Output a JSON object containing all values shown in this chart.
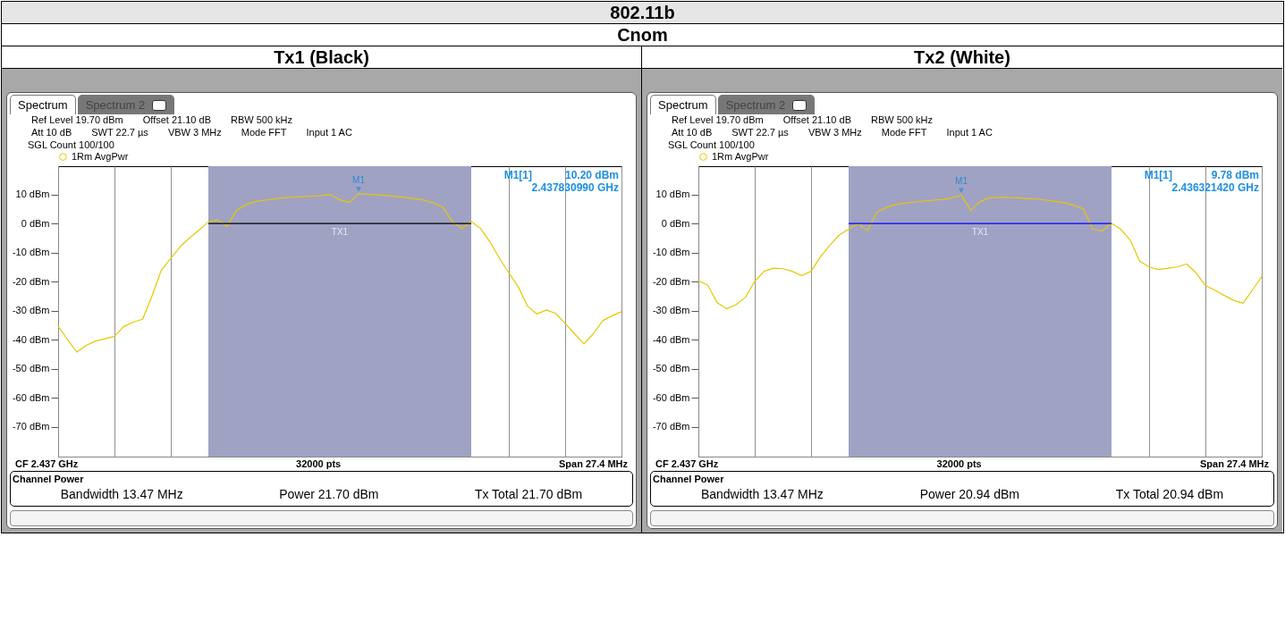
{
  "chart_data": [
    {
      "type": "line",
      "title": "Tx1 (Black)",
      "categories": [
        null,
        null,
        null,
        null,
        null,
        null,
        null,
        null,
        null,
        null,
        null,
        null,
        null,
        null,
        null,
        null,
        null,
        null,
        null,
        null,
        null,
        null,
        null,
        null,
        null,
        null,
        null,
        null,
        null,
        null,
        null,
        null,
        null,
        null,
        null,
        null,
        null,
        null,
        null,
        null,
        null,
        null,
        null,
        null,
        null,
        null,
        null,
        null,
        null,
        null,
        null,
        null,
        null,
        null,
        null,
        null,
        null,
        null,
        null,
        null,
        null
      ],
      "series": [
        {
          "name": "1Rm AvgPwr",
          "color": "#e6c800",
          "values": [
            -35.4,
            -40,
            -44.3,
            -42,
            -40.5,
            -39.7,
            -38.9,
            -35.5,
            -34,
            -33,
            -25,
            -16,
            -12,
            -8,
            -5,
            -2.3,
            0.5,
            1.2,
            -1,
            4.5,
            6.5,
            7.5,
            8,
            8.4,
            8.8,
            9,
            9.2,
            9.4,
            9.6,
            9.9,
            8.1,
            7.2,
            10.2,
            10,
            9.8,
            9.6,
            9.3,
            8.9,
            8.5,
            8,
            7,
            5.5,
            0.5,
            -1.7,
            0.6,
            -1.8,
            -6.4,
            -12,
            -17,
            -21.8,
            -28.5,
            -31.2,
            -29.8,
            -31,
            -34.5,
            -38,
            -41.5,
            -38,
            -33.5,
            -31.8,
            -30.4
          ]
        },
        {
          "type": "line",
          "color": "#000000",
          "values": [
            null,
            null,
            null,
            null,
            null,
            null,
            null,
            null,
            null,
            null,
            null,
            null,
            null,
            null,
            null,
            null,
            0,
            0,
            0,
            0,
            0,
            0,
            0,
            0,
            0,
            0,
            0,
            0,
            0,
            0,
            0,
            0,
            0,
            0,
            0,
            0,
            0,
            0,
            0,
            0,
            0,
            0,
            0,
            0,
            0,
            null,
            null,
            null,
            null,
            null,
            null,
            null,
            null,
            null,
            null,
            null,
            null,
            null,
            null,
            null,
            null
          ],
          "lower": [
            null,
            null,
            null,
            null,
            null,
            null,
            null,
            null,
            null,
            null,
            null,
            null,
            null,
            null,
            null,
            null,
            -80.3,
            -80.3,
            -80.3,
            -80.3,
            -80.3,
            -80.3,
            -80.3,
            -80.3,
            -80.3,
            -80.3,
            -80.3,
            -80.3,
            -80.3,
            -80.3,
            -80.3,
            -80.3,
            -80.3,
            -80.3,
            -80.3,
            -80.3,
            -80.3,
            -80.3,
            -80.3,
            -80.3,
            -80.3,
            -80.3,
            -80.3,
            -80.3,
            -80.3,
            null,
            null,
            null,
            null,
            null,
            null,
            null,
            null,
            null,
            null,
            null,
            null,
            null,
            null,
            null,
            null
          ],
          "upper": [
            null,
            null,
            null,
            null,
            null,
            null,
            null,
            null,
            null,
            null,
            null,
            null,
            null,
            null,
            null,
            null,
            19.7,
            19.7,
            19.7,
            19.7,
            19.7,
            19.7,
            19.7,
            19.7,
            19.7,
            19.7,
            19.7,
            19.7,
            19.7,
            19.7,
            19.7,
            19.7,
            19.7,
            19.7,
            19.7,
            19.7,
            19.7,
            19.7,
            19.7,
            19.7,
            19.7,
            19.7,
            19.7,
            19.7,
            19.7,
            null,
            null,
            null,
            null,
            null,
            null,
            null,
            null,
            null,
            null,
            null,
            null,
            null,
            null,
            null,
            null
          ]
        }
      ],
      "ylim": [
        -80.3,
        19.7
      ],
      "yticks": [
        {
          "value": 10,
          "label": "10 dBm"
        },
        {
          "value": 0,
          "label": "0 dBm"
        },
        {
          "value": -10,
          "label": "-10 dBm"
        },
        {
          "value": -20,
          "label": "-20 dBm"
        },
        {
          "value": -30,
          "label": "-30 dBm"
        },
        {
          "value": -40,
          "label": "-40 dBm"
        },
        {
          "value": -50,
          "label": "-50 dBm"
        },
        {
          "value": -60,
          "label": "-60 dBm"
        },
        {
          "value": -70,
          "label": "-70 dBm"
        }
      ],
      "grid": "x",
      "legend": "top left",
      "annotations": [
        "802.11b",
        "Cnom",
        "Spectrum",
        "Spectrum 2",
        "Ref Level 19.70 dBm",
        "Offset 21.10 dB",
        "RBW 500 kHz",
        "Att 10 dB",
        "SWT 22.7 µs",
        "VBW 3 MHz",
        "Mode FFT",
        "Input 1 AC",
        "SGL Count 100/100",
        "M1[1]",
        "10.20 dBm",
        "2.437830990 GHz",
        "TX1",
        "CF 2.437 GHz",
        "32000 pts",
        "Span 27.4 MHz",
        "Channel Power",
        "Bandwidth 13.47 MHz",
        "Power 21.70 dBm",
        "Tx Total 21.70 dBm",
        {
          "text": "M1",
          "y": 10.2
        }
      ]
    },
    {
      "type": "line",
      "title": "Tx2 (White)",
      "categories": [
        null,
        null,
        null,
        null,
        null,
        null,
        null,
        null,
        null,
        null,
        null,
        null,
        null,
        null,
        null,
        null,
        null,
        null,
        null,
        null,
        null,
        null,
        null,
        null,
        null,
        null,
        null,
        null,
        null,
        null,
        null,
        null,
        null,
        null,
        null,
        null,
        null,
        null,
        null,
        null,
        null,
        null,
        null,
        null,
        null,
        null,
        null,
        null,
        null,
        null,
        null,
        null,
        null,
        null,
        null,
        null,
        null,
        null,
        null,
        null,
        null
      ],
      "series": [
        {
          "name": "1Rm AvgPwr",
          "color": "#e6c800",
          "values": [
            -19.7,
            -21.3,
            -27.3,
            -29.4,
            -28,
            -25.5,
            -20,
            -16.5,
            -15.4,
            -15.6,
            -16.5,
            -18,
            -16.5,
            -11.5,
            -7.5,
            -4,
            -2,
            0,
            -2.5,
            3.8,
            5.5,
            6.5,
            7,
            7.4,
            7.7,
            8,
            8.2,
            8.8,
            9.78,
            4.5,
            7.5,
            8.8,
            9,
            9,
            8.8,
            8.6,
            8.4,
            8,
            7.6,
            7.1,
            6.2,
            5,
            -2,
            -2.6,
            0,
            -2,
            -5.8,
            -13,
            -15,
            -15.9,
            -15.4,
            -15,
            -14,
            -17,
            -21.4,
            -23,
            -24.8,
            -26.5,
            -27.5,
            -23,
            -18.3
          ]
        },
        {
          "type": "line",
          "color": "#0000ff",
          "values": [
            null,
            null,
            null,
            null,
            null,
            null,
            null,
            null,
            null,
            null,
            null,
            null,
            null,
            null,
            null,
            null,
            0,
            0,
            0,
            0,
            0,
            0,
            0,
            0,
            0,
            0,
            0,
            0,
            0,
            0,
            0,
            0,
            0,
            0,
            0,
            0,
            0,
            0,
            0,
            0,
            0,
            0,
            0,
            0,
            0,
            null,
            null,
            null,
            null,
            null,
            null,
            null,
            null,
            null,
            null,
            null,
            null,
            null,
            null,
            null,
            null
          ],
          "lower": [
            null,
            null,
            null,
            null,
            null,
            null,
            null,
            null,
            null,
            null,
            null,
            null,
            null,
            null,
            null,
            null,
            -80.3,
            -80.3,
            -80.3,
            -80.3,
            -80.3,
            -80.3,
            -80.3,
            -80.3,
            -80.3,
            -80.3,
            -80.3,
            -80.3,
            -80.3,
            -80.3,
            -80.3,
            -80.3,
            -80.3,
            -80.3,
            -80.3,
            -80.3,
            -80.3,
            -80.3,
            -80.3,
            -80.3,
            -80.3,
            -80.3,
            -80.3,
            -80.3,
            -80.3,
            null,
            null,
            null,
            null,
            null,
            null,
            null,
            null,
            null,
            null,
            null,
            null,
            null,
            null,
            null,
            null
          ],
          "upper": [
            null,
            null,
            null,
            null,
            null,
            null,
            null,
            null,
            null,
            null,
            null,
            null,
            null,
            null,
            null,
            null,
            19.7,
            19.7,
            19.7,
            19.7,
            19.7,
            19.7,
            19.7,
            19.7,
            19.7,
            19.7,
            19.7,
            19.7,
            19.7,
            19.7,
            19.7,
            19.7,
            19.7,
            19.7,
            19.7,
            19.7,
            19.7,
            19.7,
            19.7,
            19.7,
            19.7,
            19.7,
            19.7,
            19.7,
            19.7,
            null,
            null,
            null,
            null,
            null,
            null,
            null,
            null,
            null,
            null,
            null,
            null,
            null,
            null,
            null,
            null
          ]
        }
      ],
      "ylim": [
        -80.3,
        19.7
      ],
      "yticks": [
        {
          "value": 10,
          "label": "10 dBm"
        },
        {
          "value": 0,
          "label": "0 dBm"
        },
        {
          "value": -10,
          "label": "-10 dBm"
        },
        {
          "value": -20,
          "label": "-20 dBm"
        },
        {
          "value": -30,
          "label": "-30 dBm"
        },
        {
          "value": -40,
          "label": "-40 dBm"
        },
        {
          "value": -50,
          "label": "-50 dBm"
        },
        {
          "value": -60,
          "label": "-60 dBm"
        },
        {
          "value": -70,
          "label": "-70 dBm"
        }
      ],
      "grid": "x",
      "legend": "top left",
      "annotations": [
        "Spectrum",
        "Spectrum 2",
        "Ref Level 19.70 dBm",
        "Offset 21.10 dB",
        "RBW 500 kHz",
        "Att 10 dB",
        "SWT 22.7 µs",
        "VBW 3 MHz",
        "Mode FFT",
        "Input 1 AC",
        "SGL Count 100/100",
        "M1[1]",
        "9.78 dBm",
        "2.436321420 GHz",
        "TX1",
        "CF 2.437 GHz",
        "32000 pts",
        "Span 27.4 MHz",
        "Channel Power",
        "Bandwidth 13.47 MHz",
        "Power 20.94 dBm",
        "Tx Total 20.94 dBm",
        {
          "text": "M1",
          "y": 9.78
        }
      ]
    }
  ]
}
